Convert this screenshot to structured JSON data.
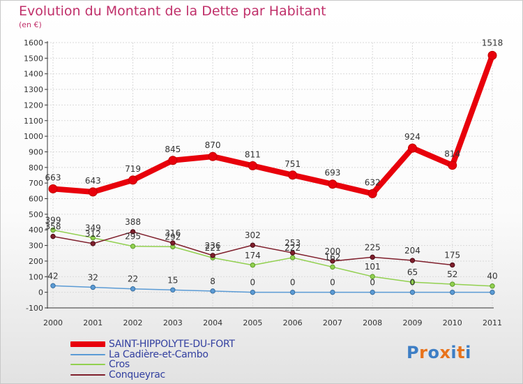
{
  "chart_data": {
    "type": "line",
    "title": "Evolution du Montant de la Dette par Habitant",
    "subtitle": "(en €)",
    "x": [
      "2000",
      "2001",
      "2002",
      "2003",
      "2004",
      "2005",
      "2006",
      "2007",
      "2008",
      "2009",
      "2010",
      "2011"
    ],
    "ylim": [
      -100,
      1600
    ],
    "yticks": [
      -100,
      0,
      100,
      200,
      300,
      400,
      500,
      600,
      700,
      800,
      900,
      1000,
      1100,
      1200,
      1300,
      1400,
      1500,
      1600
    ],
    "grid": true,
    "legend_position": "bottom-left",
    "series": [
      {
        "name": "SAINT-HIPPOLYTE-DU-FORT",
        "color": "#e8000b",
        "values": [
          663,
          643,
          719,
          845,
          870,
          811,
          751,
          693,
          632,
          924,
          814,
          1518
        ]
      },
      {
        "name": "La Cadière-et-Cambo",
        "color": "#5b9bd5",
        "values": [
          42,
          32,
          22,
          15,
          8,
          0,
          0,
          0,
          0,
          0,
          0,
          0
        ]
      },
      {
        "name": "Cros",
        "color": "#92d050",
        "values": [
          399,
          349,
          295,
          292,
          221,
          174,
          222,
          162,
          101,
          65,
          52,
          40
        ]
      },
      {
        "name": "Conqueyrac",
        "color": "#7f1f2c",
        "values": [
          358,
          312,
          388,
          316,
          236,
          302,
          253,
          200,
          225,
          204,
          175,
          null
        ]
      }
    ],
    "data_labels": [
      [
        663,
        643,
        719,
        845,
        870,
        811,
        751,
        693,
        632,
        924,
        814,
        1518
      ],
      [
        42,
        32,
        22,
        15,
        8,
        0,
        0,
        0,
        0,
        0,
        null,
        null
      ],
      [
        399,
        349,
        295,
        292,
        221,
        174,
        222,
        162,
        101,
        65,
        52,
        40
      ],
      [
        358,
        312,
        388,
        316,
        236,
        302,
        253,
        200,
        225,
        204,
        175,
        null
      ]
    ]
  },
  "logo": {
    "text": "Proxiti",
    "letter_colors": [
      "#3d7ec5",
      "#e8731c",
      "#3d7ec5",
      "#e8731c",
      "#3d7ec5",
      "#e8731c",
      "#3d7ec5"
    ]
  }
}
